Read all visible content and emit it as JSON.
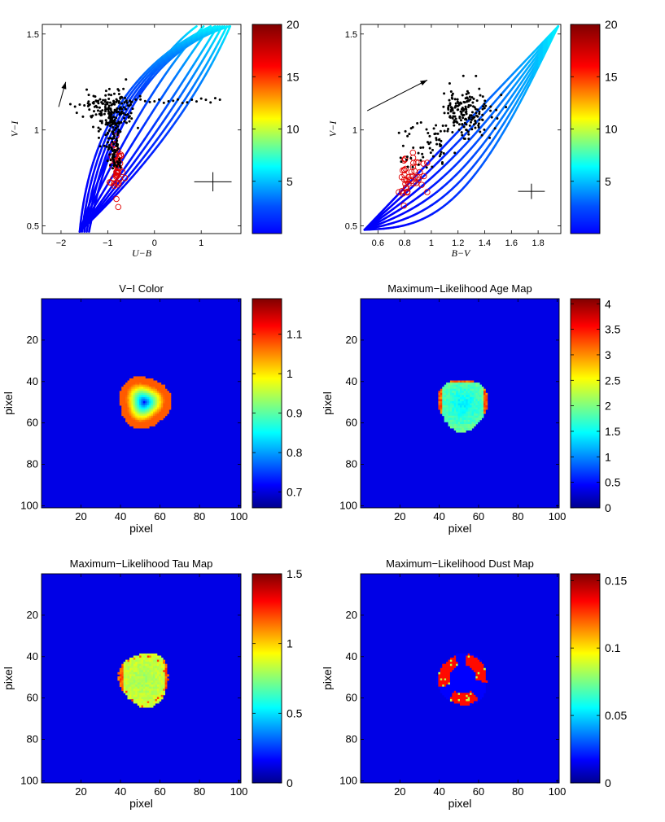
{
  "chart_data": [
    {
      "id": "cc_ub",
      "type": "scatter",
      "title": "",
      "xlabel": "U−B",
      "ylabel": "V−I",
      "xlim": [
        -2.4,
        1.85
      ],
      "ylim": [
        0.46,
        1.55
      ],
      "xticks": [
        -2,
        -1,
        0,
        1
      ],
      "xtick_labels": [
        "−2",
        "−1",
        "0",
        "1"
      ],
      "yticks": [
        0.5,
        1,
        1.5
      ],
      "ytick_labels": [
        "0.5",
        "1",
        "1.5"
      ],
      "colorbar": {
        "range": [
          0,
          20
        ],
        "ticks": [
          5,
          10,
          15,
          20
        ],
        "tick_labels": [
          "5",
          "10",
          "15",
          "20"
        ]
      },
      "tracks": {
        "start": [
          -1.6,
          0.47
        ],
        "ends": [
          [
            0.9,
            1.54
          ],
          [
            1.05,
            1.54
          ],
          [
            1.2,
            1.54
          ],
          [
            1.35,
            1.54
          ],
          [
            1.45,
            1.54
          ],
          [
            1.55,
            1.54
          ],
          [
            1.62,
            1.54
          ]
        ],
        "mid_ends": [
          [
            -0.45,
            1.3
          ],
          [
            -0.25,
            1.2
          ],
          [
            -0.05,
            1.12
          ],
          [
            0.15,
            1.06
          ],
          [
            0.3,
            1.03
          ],
          [
            0.45,
            1.0
          ],
          [
            0.6,
            0.98
          ]
        ]
      },
      "black_points": {
        "center": [
          -0.95,
          1.1
        ],
        "spread": [
          0.25,
          0.06
        ],
        "tail_x": [
          -1.8,
          1.5
        ],
        "tail_y": 1.15,
        "count": 260
      },
      "red_points": {
        "center": [
          -0.8,
          0.8
        ],
        "spread": [
          0.06,
          0.08
        ],
        "count": 45
      },
      "reddening_arrow": [
        [
          -2.05,
          1.12
        ],
        [
          -1.9,
          1.25
        ]
      ],
      "error_cross": {
        "center": [
          1.25,
          0.73
        ],
        "dx": 0.4,
        "dy": 0.05
      }
    },
    {
      "id": "cc_bv",
      "type": "scatter",
      "title": "",
      "xlabel": "B−V",
      "ylabel": "V−I",
      "xlim": [
        0.47,
        1.97
      ],
      "ylim": [
        0.46,
        1.55
      ],
      "xticks": [
        0.6,
        0.8,
        1.0,
        1.2,
        1.4,
        1.6,
        1.8
      ],
      "xtick_labels": [
        "0.6",
        "0.8",
        "1",
        "1.2",
        "1.4",
        "1.6",
        "1.8"
      ],
      "yticks": [
        0.5,
        1,
        1.5
      ],
      "ytick_labels": [
        "0.5",
        "1",
        "1.5"
      ],
      "colorbar": {
        "range": [
          0,
          20
        ],
        "ticks": [
          5,
          10,
          15,
          20
        ],
        "tick_labels": [
          "5",
          "10",
          "15",
          "20"
        ]
      },
      "tracks": {
        "start": [
          0.5,
          0.48
        ],
        "end": [
          1.95,
          1.54
        ],
        "bend": [
          0.0,
          0.06,
          0.12,
          0.18,
          0.24,
          0.3,
          0.36
        ]
      },
      "black_points": {
        "center": [
          1.25,
          1.1
        ],
        "spread": [
          0.1,
          0.07
        ],
        "count": 240
      },
      "red_points": {
        "center": [
          0.84,
          0.76
        ],
        "spread": [
          0.06,
          0.06
        ],
        "count": 45
      },
      "reddening_arrow": [
        [
          0.52,
          1.1
        ],
        [
          0.97,
          1.26
        ]
      ],
      "error_cross": {
        "center": [
          1.75,
          0.68
        ],
        "dx": 0.1,
        "dy": 0.04
      }
    },
    {
      "id": "vi_map",
      "type": "heatmap",
      "title": "V−I Color",
      "xlabel": "pixel",
      "ylabel": "pixel",
      "xlim": [
        0,
        101
      ],
      "ylim": [
        0,
        101
      ],
      "xticks": [
        20,
        40,
        60,
        80,
        100
      ],
      "xtick_labels": [
        "20",
        "40",
        "60",
        "80",
        "100"
      ],
      "yticks": [
        20,
        40,
        60,
        80,
        100
      ],
      "ytick_labels": [
        "20",
        "40",
        "60",
        "80",
        "100"
      ],
      "colorbar": {
        "range": [
          0.66,
          1.19
        ],
        "ticks": [
          0.7,
          0.8,
          0.9,
          1.0,
          1.1
        ],
        "tick_labels": [
          "0.7",
          "0.8",
          "0.9",
          "1",
          "1.1"
        ]
      },
      "blob": {
        "center": [
          52,
          50
        ],
        "radius": [
          13,
          12.5
        ],
        "edge": "ring",
        "value_center": 0.68,
        "value_mid": 0.9,
        "value_edge": 1.12
      }
    },
    {
      "id": "age_map",
      "type": "heatmap",
      "title": "Maximum−Likelihood Age Map",
      "xlabel": "pixel",
      "ylabel": "pixel",
      "xlim": [
        0,
        101
      ],
      "ylim": [
        0,
        101
      ],
      "xticks": [
        20,
        40,
        60,
        80,
        100
      ],
      "xtick_labels": [
        "20",
        "40",
        "60",
        "80",
        "100"
      ],
      "yticks": [
        20,
        40,
        60,
        80,
        100
      ],
      "ytick_labels": [
        "20",
        "40",
        "60",
        "80",
        "100"
      ],
      "colorbar": {
        "range": [
          0,
          4.1
        ],
        "ticks": [
          0,
          0.5,
          1,
          1.5,
          2,
          2.5,
          3,
          3.5,
          4
        ],
        "tick_labels": [
          "0",
          "0.5",
          "1",
          "1.5",
          "2",
          "2.5",
          "3",
          "3.5",
          "4"
        ]
      },
      "blob": {
        "center": [
          52,
          51
        ],
        "radius": [
          12.5,
          12.5
        ],
        "edge": "patchy",
        "value_center": 1.0,
        "value_mid": 1.9,
        "value_edge": 3.8
      }
    },
    {
      "id": "tau_map",
      "type": "heatmap",
      "title": "Maximum−Likelihood Tau Map",
      "xlabel": "pixel",
      "ylabel": "pixel",
      "xlim": [
        0,
        101
      ],
      "ylim": [
        0,
        101
      ],
      "xticks": [
        20,
        40,
        60,
        80,
        100
      ],
      "xtick_labels": [
        "20",
        "40",
        "60",
        "80",
        "100"
      ],
      "yticks": [
        20,
        40,
        60,
        80,
        100
      ],
      "ytick_labels": [
        "20",
        "40",
        "60",
        "80",
        "100"
      ],
      "colorbar": {
        "range": [
          0,
          1.5
        ],
        "ticks": [
          0,
          0.5,
          1,
          1.5
        ],
        "tick_labels": [
          "0",
          "0.5",
          "1",
          "1.5"
        ]
      },
      "blob": {
        "center": [
          52,
          51
        ],
        "radius": [
          12.5,
          13
        ],
        "edge": "tau",
        "value_center": 0.85,
        "value_mid": 0.9,
        "value_edge": 1.2
      }
    },
    {
      "id": "dust_map",
      "type": "heatmap",
      "title": "Maximum−Likelihood Dust Map",
      "xlabel": "pixel",
      "ylabel": "pixel",
      "xlim": [
        0,
        101
      ],
      "ylim": [
        0,
        101
      ],
      "xticks": [
        20,
        40,
        60,
        80,
        100
      ],
      "xtick_labels": [
        "20",
        "40",
        "60",
        "80",
        "100"
      ],
      "yticks": [
        20,
        40,
        60,
        80,
        100
      ],
      "ytick_labels": [
        "20",
        "40",
        "60",
        "80",
        "100"
      ],
      "colorbar": {
        "range": [
          0,
          0.155
        ],
        "ticks": [
          0,
          0.05,
          0.1,
          0.15
        ],
        "tick_labels": [
          "0",
          "0.05",
          "0.1",
          "0.15"
        ]
      },
      "blob": {
        "center": [
          52,
          51
        ],
        "radius": [
          12.5,
          12.5
        ],
        "edge": "dust",
        "value_center": 0.0,
        "value_mid": 0.0,
        "value_edge": 0.15
      }
    }
  ]
}
